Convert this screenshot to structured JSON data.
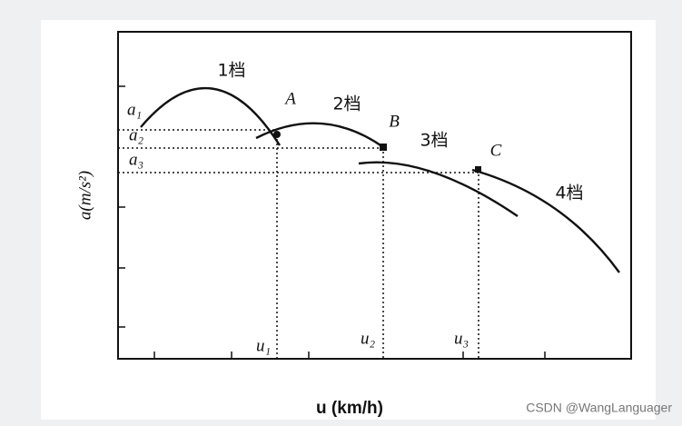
{
  "diagram": {
    "y_axis_label": "a(m/s²)",
    "x_axis_label": "u (km/h)",
    "curves": [
      {
        "label": "1档"
      },
      {
        "label": "2档"
      },
      {
        "label": "3档"
      },
      {
        "label": "4档"
      }
    ],
    "points": [
      {
        "label": "A"
      },
      {
        "label": "B"
      },
      {
        "label": "C"
      }
    ],
    "y_marks": [
      "a₁",
      "a₂",
      "a₃"
    ],
    "x_marks": [
      "u₁",
      "u₂",
      "u₃"
    ]
  },
  "watermark": "CSDN @WangLanguager"
}
